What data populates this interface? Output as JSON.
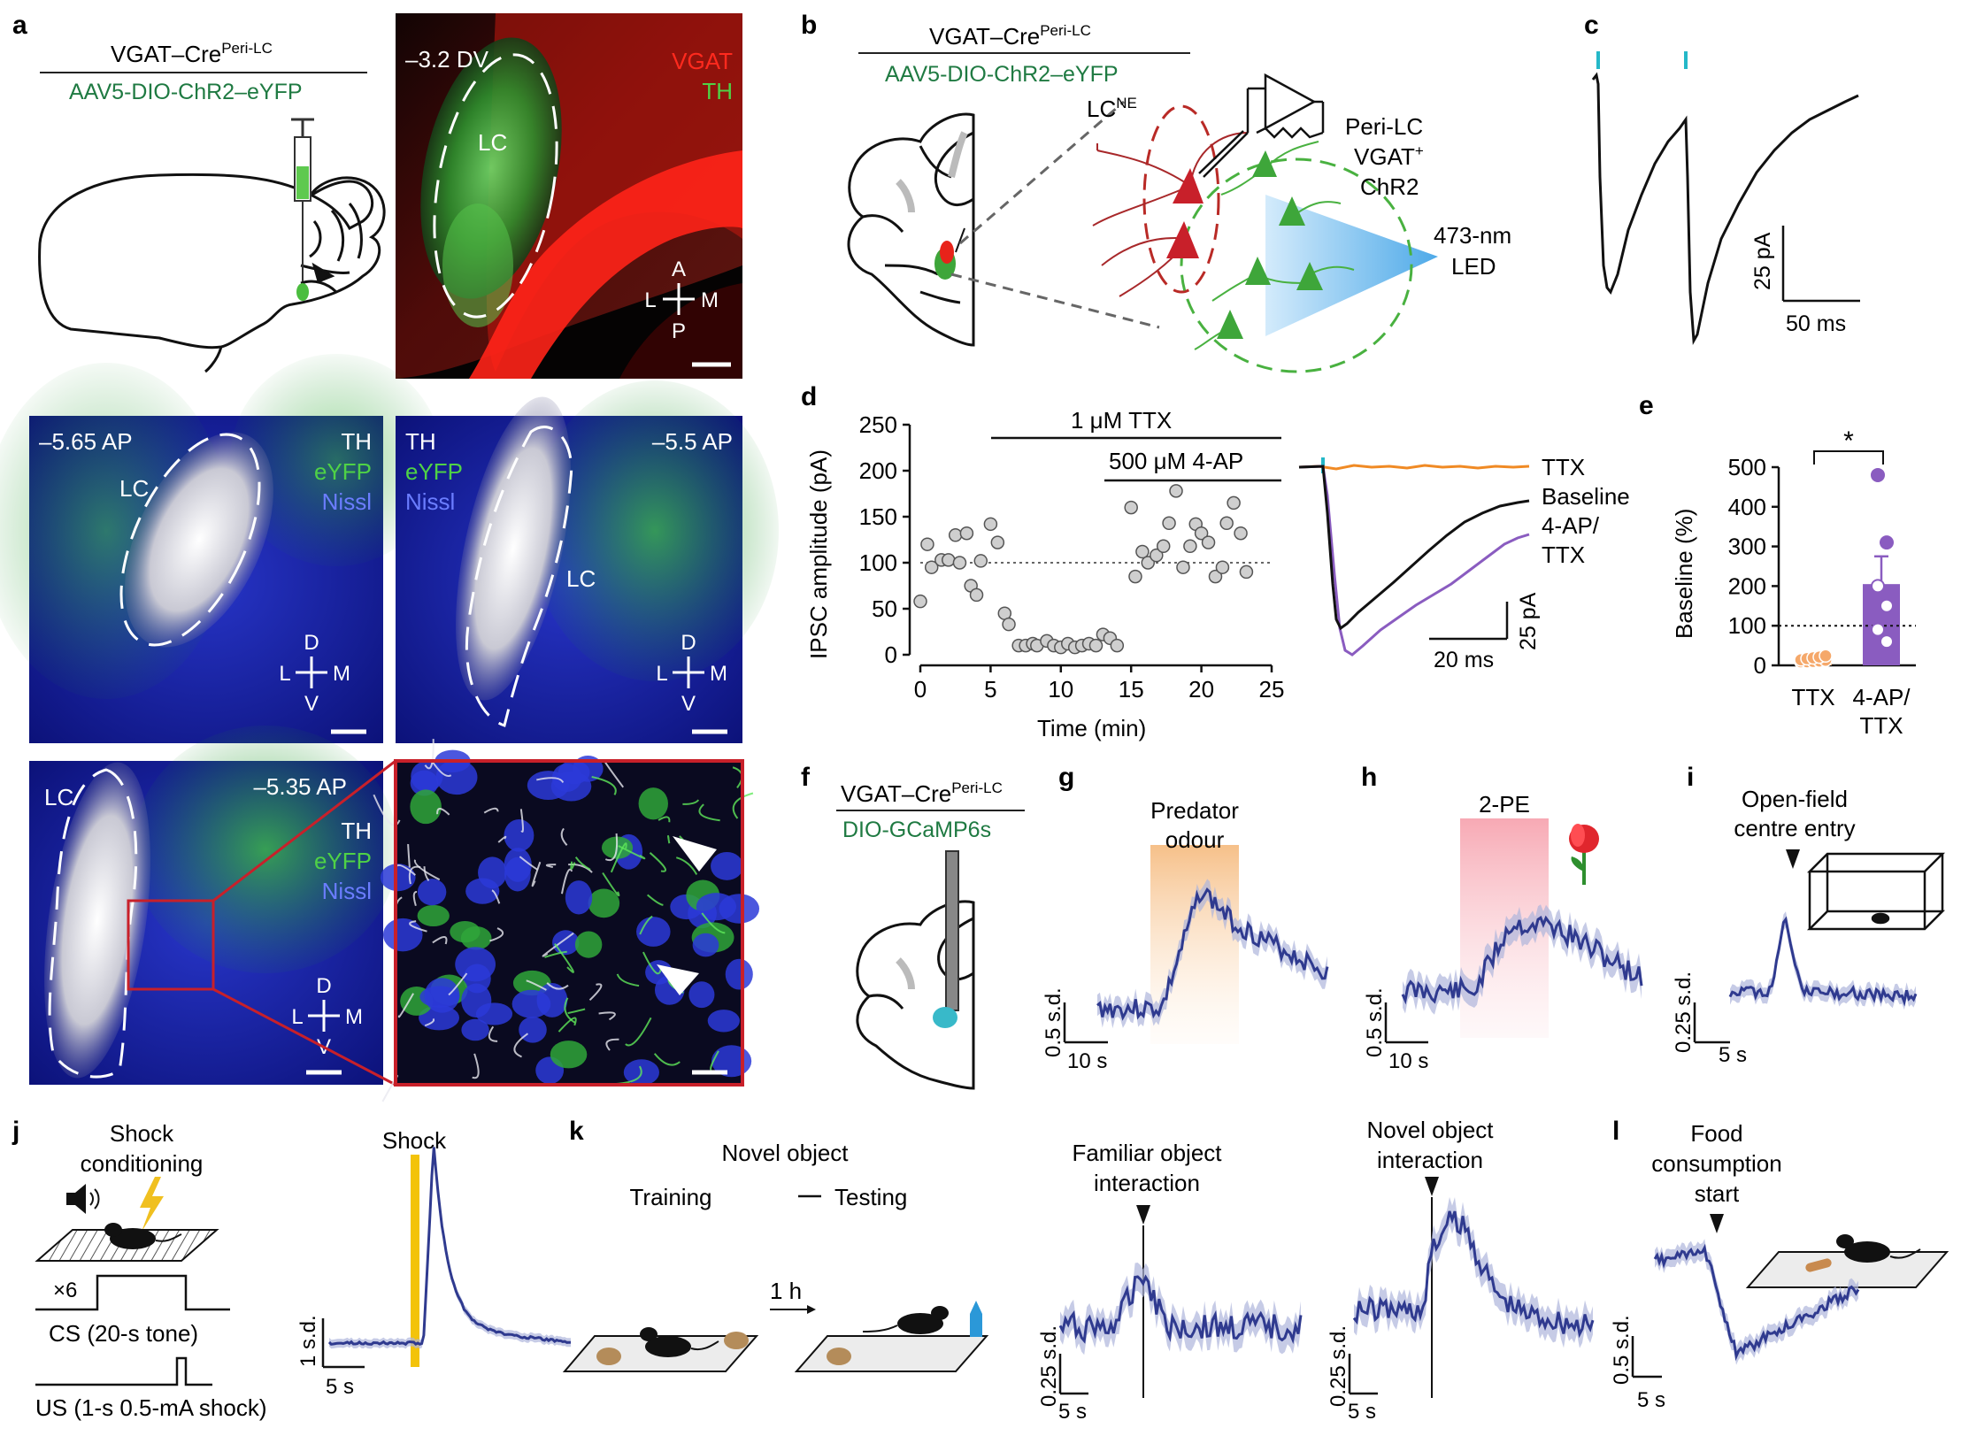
{
  "panel_letters": {
    "a": "a",
    "b": "b",
    "c": "c",
    "d": "d",
    "e": "e",
    "f": "f",
    "g": "g",
    "h": "h",
    "i": "i",
    "j": "j",
    "k": "k",
    "l": "l"
  },
  "colors": {
    "red": "#e8231a",
    "green": "#3ea63a",
    "dark_green": "#1f7a42",
    "blue": "#2230d8",
    "trace_navy": "#2f3a8f",
    "orange": "#f08a24",
    "purple": "#8a5cc0",
    "cyan": "#24b8c8",
    "box_red": "#c8202a"
  },
  "panel_a": {
    "genotype_main": "VGAT–Cre",
    "genotype_sup": "Peri-LC",
    "virus": "AAV5-DIO-ChR2–eYFP",
    "img1": {
      "depth": "–3.2 DV",
      "label_vgat": "VGAT",
      "label_th": "TH",
      "region": "LC",
      "compass": {
        "top": "A",
        "left": "L",
        "right": "M",
        "bottom": "P"
      }
    },
    "img2": {
      "depth": "–5.65 AP",
      "region": "LC",
      "stain1": "TH",
      "stain2": "eYFP",
      "stain3": "Nissl",
      "compass": {
        "top": "D",
        "left": "L",
        "right": "M",
        "bottom": "V"
      }
    },
    "img3": {
      "depth": "–5.5 AP",
      "region": "LC",
      "stain1": "TH",
      "stain2": "eYFP",
      "stain3": "Nissl",
      "compass": {
        "top": "D",
        "left": "L",
        "right": "M",
        "bottom": "V"
      }
    },
    "img4": {
      "depth": "–5.35 AP",
      "region": "LC",
      "stain1": "TH",
      "stain2": "eYFP",
      "stain3": "Nissl",
      "compass": {
        "top": "D",
        "left": "L",
        "right": "M",
        "bottom": "V"
      }
    }
  },
  "panel_b": {
    "genotype_main": "VGAT–Cre",
    "genotype_sup": "Peri-LC",
    "virus": "AAV5-DIO-ChR2–eYFP",
    "lc_main": "LC",
    "lc_sup": "NE",
    "cell_line1": "Peri-LC",
    "cell_line2_main": "VGAT",
    "cell_line2_sup": "+",
    "cell_line3": "ChR2",
    "led_line1": "473-nm",
    "led_line2": "LED"
  },
  "panel_c": {
    "scale_y": "25 pA",
    "scale_x": "50 ms"
  },
  "panel_d": {
    "ylabel": "IPSC amplitude (pA)",
    "xlabel": "Time (min)",
    "drug1": "1 μM TTX",
    "drug2": "500 μM 4-AP",
    "legend_ttx": "TTX",
    "legend_baseline": "Baseline",
    "legend_4ap_line1": "4-AP/",
    "legend_4ap_line2": "TTX",
    "scale_x": "20 ms",
    "scale_y": "25 pA"
  },
  "panel_e": {
    "ylabel": "Baseline (%)",
    "cat1": "TTX",
    "cat2_line1": "4-AP/",
    "cat2_line2": "TTX",
    "sig": "*"
  },
  "panel_f": {
    "genotype_main": "VGAT–Cre",
    "genotype_sup": "Peri-LC",
    "virus": "DIO-GCaMP6s"
  },
  "panel_g": {
    "event_line1": "Predator",
    "event_line2": "odour",
    "scale_y": "0.5 s.d.",
    "scale_x": "10 s"
  },
  "panel_h": {
    "event": "2-PE",
    "scale_y": "0.5 s.d.",
    "scale_x": "10 s"
  },
  "panel_i": {
    "event_line1": "Open-field",
    "event_line2": "centre entry",
    "scale_y": "0.25 s.d.",
    "scale_x": "5 s"
  },
  "panel_j": {
    "title_line1": "Shock",
    "title_line2": "conditioning",
    "repeat": "×6",
    "cs_label": "CS (20-s tone)",
    "us_label": "US (1-s 0.5-mA shock)",
    "event": "Shock",
    "scale_y": "1 s.d.",
    "scale_x": "5 s"
  },
  "panel_k": {
    "title": "Novel object",
    "training": "Training",
    "testing": "Testing",
    "delay": "1 h",
    "fam_line1": "Familiar object",
    "fam_line2": "interaction",
    "nov_line1": "Novel object",
    "nov_line2": "interaction",
    "fam_scale_y": "0.25 s.d.",
    "fam_scale_x": "5 s",
    "nov_scale_y": "0.25 s.d.",
    "nov_scale_x": "5 s"
  },
  "panel_l": {
    "event_line1": "Food",
    "event_line2": "consumption",
    "event_line3": "start",
    "scale_y": "0.5 s.d.",
    "scale_x": "5 s"
  },
  "chart_data": [
    {
      "id": "d-timecourse",
      "type": "scatter",
      "xlabel": "Time (min)",
      "ylabel": "IPSC amplitude (pA)",
      "xlim": [
        0,
        25
      ],
      "ylim": [
        0,
        250
      ],
      "xticks": [
        0,
        5,
        10,
        15,
        20,
        25
      ],
      "yticks": [
        0,
        50,
        100,
        150,
        200,
        250
      ],
      "reference_line": 100,
      "points": [
        [
          0,
          58
        ],
        [
          0.5,
          120
        ],
        [
          0.8,
          95
        ],
        [
          1.5,
          103
        ],
        [
          2,
          103
        ],
        [
          2.5,
          130
        ],
        [
          2.8,
          100
        ],
        [
          3.3,
          132
        ],
        [
          3.6,
          75
        ],
        [
          4,
          65
        ],
        [
          4.3,
          102
        ],
        [
          5,
          142
        ],
        [
          5.5,
          122
        ],
        [
          6,
          45
        ],
        [
          6.3,
          33
        ],
        [
          7,
          10
        ],
        [
          7.5,
          10
        ],
        [
          8,
          12
        ],
        [
          8.3,
          10
        ],
        [
          9,
          15
        ],
        [
          9.5,
          10
        ],
        [
          10,
          8
        ],
        [
          10.5,
          12
        ],
        [
          11,
          8
        ],
        [
          11.5,
          10
        ],
        [
          12,
          12
        ],
        [
          12.5,
          10
        ],
        [
          13,
          22
        ],
        [
          13.5,
          18
        ],
        [
          14,
          10
        ],
        [
          15,
          160
        ],
        [
          15.3,
          85
        ],
        [
          15.8,
          112
        ],
        [
          16.2,
          100
        ],
        [
          16.8,
          108
        ],
        [
          17.3,
          118
        ],
        [
          17.7,
          143
        ],
        [
          18.2,
          178
        ],
        [
          18.7,
          95
        ],
        [
          19.2,
          118
        ],
        [
          19.6,
          142
        ],
        [
          20,
          132
        ],
        [
          20.5,
          122
        ],
        [
          21,
          85
        ],
        [
          21.5,
          95
        ],
        [
          21.8,
          143
        ],
        [
          22.3,
          165
        ],
        [
          22.8,
          132
        ],
        [
          23.2,
          90
        ]
      ]
    },
    {
      "id": "e-bars",
      "type": "bar",
      "categories": [
        "TTX",
        "4-AP/TTX"
      ],
      "values": [
        5,
        205
      ],
      "errors": [
        3,
        70
      ],
      "ylim": [
        0,
        500
      ],
      "yticks": [
        0,
        100,
        200,
        300,
        400,
        500
      ],
      "ylabel": "Baseline (%)",
      "reference_line": 100,
      "points": [
        [
          0,
          0,
          1,
          2,
          4,
          5,
          8,
          10,
          12,
          15
        ],
        [
          480,
          310,
          200,
          150,
          90,
          60
        ]
      ]
    }
  ]
}
